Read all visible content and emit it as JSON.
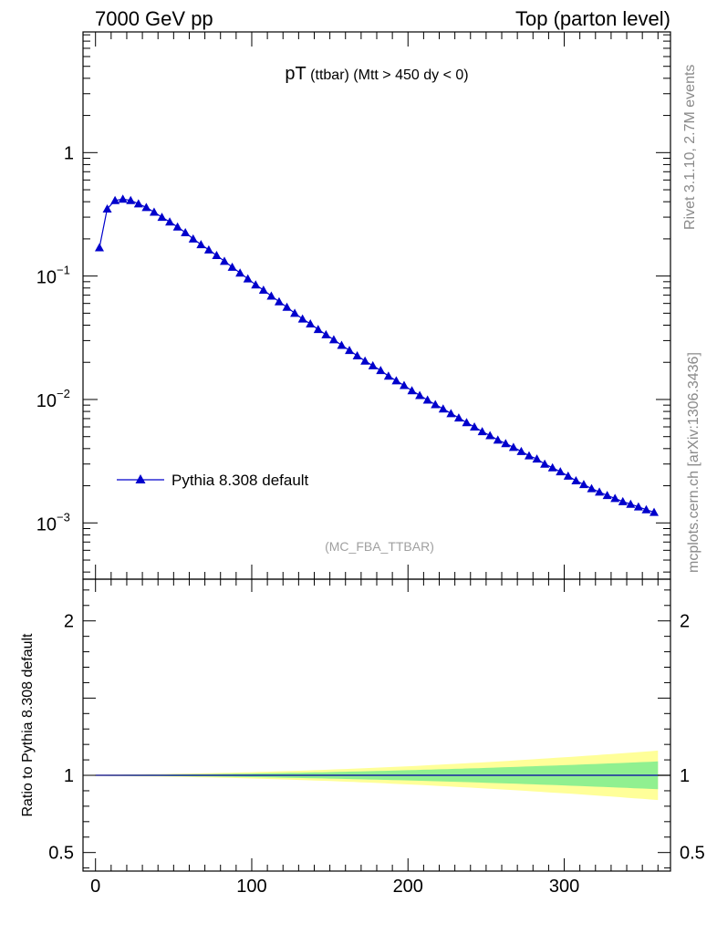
{
  "header": {
    "left": "7000 GeV pp",
    "right": "Top (parton level)"
  },
  "side_labels": {
    "rivet": "Rivet 3.1.10,  2.7M events",
    "mcplots": "mcplots.cern.ch [arXiv:1306.3436]"
  },
  "plot_title": {
    "main": "pT",
    "small": " (ttbar)",
    "rest": " (Mtt > 450 dy < 0)"
  },
  "watermark": "(MC_FBA_TTBAR)",
  "ratio_ylabel": "Ratio to Pythia 8.308 default",
  "colors": {
    "series": "#0000cc",
    "band_inner": "#90f090",
    "band_outer": "#ffff99"
  },
  "chart_data": [
    {
      "type": "line",
      "yscale": "log",
      "xlim": [
        -8,
        368
      ],
      "ylim": [
        0.00035,
        9.5
      ],
      "x": [
        2.5,
        7.5,
        12.5,
        17.5,
        22.5,
        27.5,
        32.5,
        37.5,
        42.5,
        47.5,
        52.5,
        57.5,
        62.5,
        67.5,
        72.5,
        77.5,
        82.5,
        87.5,
        92.5,
        97.5,
        102.5,
        107.5,
        112.5,
        117.5,
        122.5,
        127.5,
        132.5,
        137.5,
        142.5,
        147.5,
        152.5,
        157.5,
        162.5,
        167.5,
        172.5,
        177.5,
        182.5,
        187.5,
        192.5,
        197.5,
        202.5,
        207.5,
        212.5,
        217.5,
        222.5,
        227.5,
        232.5,
        237.5,
        242.5,
        247.5,
        252.5,
        257.5,
        262.5,
        267.5,
        272.5,
        277.5,
        282.5,
        287.5,
        292.5,
        297.5,
        302.5,
        307.5,
        312.5,
        317.5,
        322.5,
        327.5,
        332.5,
        337.5,
        342.5,
        347.5,
        352.5,
        357.5
      ],
      "y": [
        0.17,
        0.35,
        0.41,
        0.42,
        0.41,
        0.385,
        0.36,
        0.33,
        0.3,
        0.275,
        0.25,
        0.225,
        0.2,
        0.18,
        0.163,
        0.147,
        0.132,
        0.118,
        0.106,
        0.095,
        0.085,
        0.077,
        0.069,
        0.062,
        0.056,
        0.05,
        0.045,
        0.041,
        0.037,
        0.0335,
        0.0305,
        0.0275,
        0.025,
        0.0226,
        0.0205,
        0.0188,
        0.0172,
        0.0155,
        0.0142,
        0.013,
        0.0118,
        0.0108,
        0.0099,
        0.0091,
        0.0084,
        0.0077,
        0.0071,
        0.0065,
        0.006,
        0.0055,
        0.0051,
        0.0047,
        0.0044,
        0.0041,
        0.0038,
        0.0035,
        0.0033,
        0.003,
        0.0028,
        0.0026,
        0.0024,
        0.0022,
        0.00205,
        0.0019,
        0.00178,
        0.00167,
        0.00158,
        0.00149,
        0.00142,
        0.00135,
        0.00128,
        0.00122
      ],
      "series": [
        {
          "name": "Pythia 8.308 default",
          "marker": "triangle"
        }
      ],
      "yticks": [
        {
          "base": "1",
          "exp": ""
        },
        {
          "base": "10",
          "exp": "−1"
        },
        {
          "base": "10",
          "exp": "−2"
        },
        {
          "base": "10",
          "exp": "−3"
        }
      ],
      "ytick_values": [
        1,
        0.1,
        0.01,
        0.001
      ]
    },
    {
      "type": "area",
      "xlim": [
        -8,
        368
      ],
      "ylim": [
        0.38,
        2.27
      ],
      "xticks": [
        "0",
        "100",
        "200",
        "300"
      ],
      "xtick_values": [
        0,
        100,
        200,
        300
      ],
      "yticks": [
        "2",
        "1",
        "0.5"
      ],
      "ytick_values": [
        2,
        1,
        0.5
      ],
      "reference": 1,
      "inner_band_halfwidth": [
        0.003,
        0.09
      ],
      "outer_band_halfwidth": [
        0.005,
        0.16
      ],
      "band_x": [
        0,
        360
      ]
    }
  ]
}
